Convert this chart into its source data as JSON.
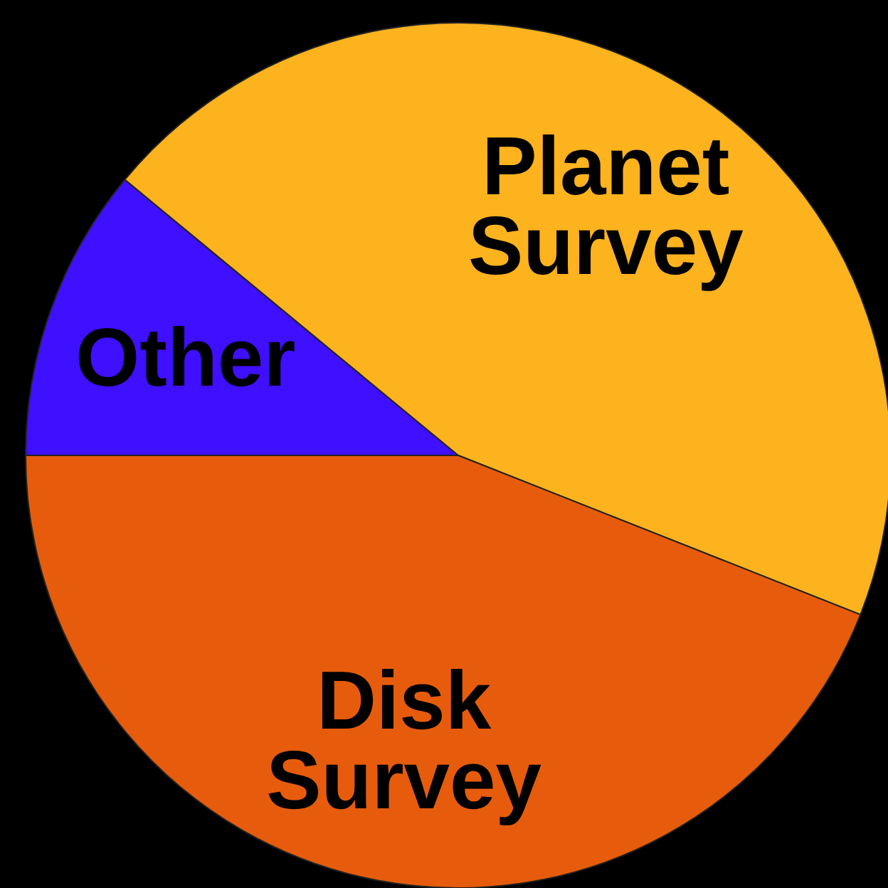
{
  "chart_data": {
    "type": "pie",
    "categories": [
      "Other",
      "Planet Survey",
      "Disk Survey"
    ],
    "values": [
      11,
      45,
      44
    ],
    "colors": [
      "#3f0fff",
      "#fdb31e",
      "#e65c0c"
    ],
    "data_labels": false
  }
}
